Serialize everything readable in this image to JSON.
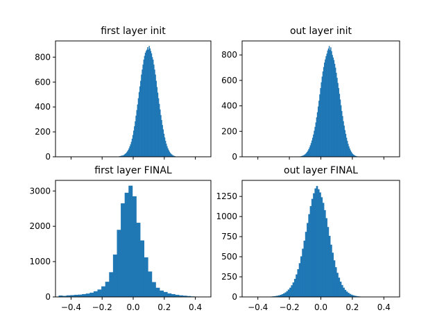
{
  "colors": {
    "bar": "#1f77b4"
  },
  "chart_data": [
    {
      "type": "bar",
      "title": "first layer init",
      "xlim": [
        -0.5,
        0.5
      ],
      "ylim": [
        0,
        930
      ],
      "xticks": [
        -0.4,
        -0.2,
        0.0,
        0.2,
        0.4
      ],
      "show_xtick_labels": false,
      "yticks": [
        0,
        200,
        400,
        600,
        800
      ],
      "ytick_labels": [
        "0",
        "200",
        "400",
        "600",
        "800"
      ],
      "bin_start": -0.1,
      "bin_width": 0.005,
      "values": [
        2,
        3,
        5,
        6,
        8,
        10,
        10,
        13,
        18,
        24,
        28,
        36,
        44,
        55,
        68,
        84,
        100,
        120,
        145,
        175,
        210,
        245,
        285,
        330,
        375,
        420,
        470,
        520,
        565,
        610,
        660,
        700,
        740,
        780,
        810,
        835,
        850,
        860,
        880,
        860,
        890,
        870,
        850,
        830,
        800,
        780,
        740,
        700,
        660,
        610,
        560,
        515,
        470,
        425,
        380,
        335,
        295,
        255,
        220,
        185,
        155,
        128,
        105,
        85,
        68,
        54,
        42,
        32,
        25,
        19,
        14,
        10,
        7,
        5
      ]
    },
    {
      "type": "bar",
      "title": "out layer init",
      "xlim": [
        -0.5,
        0.5
      ],
      "ylim": [
        0,
        910
      ],
      "xticks": [
        -0.4,
        -0.2,
        0.0,
        0.2,
        0.4
      ],
      "show_xtick_labels": false,
      "yticks": [
        0,
        200,
        400,
        600,
        800
      ],
      "ytick_labels": [
        "0",
        "200",
        "400",
        "600",
        "800"
      ],
      "bin_start": -0.14,
      "bin_width": 0.005,
      "values": [
        2,
        3,
        4,
        6,
        8,
        10,
        14,
        18,
        24,
        30,
        38,
        48,
        60,
        74,
        90,
        108,
        128,
        150,
        175,
        205,
        235,
        270,
        310,
        350,
        395,
        440,
        490,
        540,
        585,
        630,
        670,
        705,
        740,
        765,
        790,
        810,
        835,
        850,
        870,
        840,
        860,
        830,
        800,
        780,
        760,
        730,
        700,
        660,
        620,
        580,
        540,
        495,
        450,
        405,
        360,
        320,
        280,
        245,
        210,
        180,
        150,
        125,
        102,
        82,
        65,
        51,
        40,
        30,
        22,
        16,
        12,
        8,
        6,
        4,
        3,
        2,
        2
      ]
    },
    {
      "type": "bar",
      "title": "first layer FINAL",
      "xlim": [
        -0.5,
        0.5
      ],
      "ylim": [
        0,
        3300
      ],
      "xticks": [
        -0.4,
        -0.2,
        0.0,
        0.2,
        0.4
      ],
      "show_xtick_labels": true,
      "xtick_labels": [
        "−0.4",
        "−0.2",
        "0.0",
        "0.2",
        "0.4"
      ],
      "yticks": [
        0,
        1000,
        2000,
        3000
      ],
      "ytick_labels": [
        "0",
        "1000",
        "2000",
        "3000"
      ],
      "bin_start": -0.48,
      "bin_width": 0.025,
      "values": [
        40,
        30,
        45,
        50,
        60,
        65,
        80,
        95,
        120,
        160,
        210,
        300,
        430,
        700,
        1200,
        1900,
        2650,
        2950,
        3150,
        2850,
        2100,
        1600,
        1120,
        720,
        420,
        260,
        180,
        140,
        100,
        80,
        60,
        45,
        35,
        25,
        15,
        10
      ]
    },
    {
      "type": "bar",
      "title": "out layer FINAL",
      "xlim": [
        -0.5,
        0.5
      ],
      "ylim": [
        0,
        1450
      ],
      "xticks": [
        -0.4,
        -0.2,
        0.0,
        0.2,
        0.4
      ],
      "show_xtick_labels": true,
      "xtick_labels": [
        "−0.4",
        "−0.2",
        "0.0",
        "0.2",
        "0.4"
      ],
      "yticks": [
        0,
        250,
        500,
        750,
        1000,
        1250
      ],
      "ytick_labels": [
        "0",
        "250",
        "500",
        "750",
        "1000",
        "1250"
      ],
      "bin_start": -0.34,
      "bin_width": 0.01,
      "values": [
        3,
        4,
        5,
        7,
        9,
        12,
        15,
        20,
        26,
        34,
        44,
        56,
        72,
        92,
        115,
        145,
        180,
        225,
        280,
        345,
        420,
        505,
        600,
        700,
        810,
        920,
        1030,
        1130,
        1220,
        1290,
        1350,
        1380,
        1340,
        1300,
        1240,
        1170,
        1080,
        980,
        870,
        760,
        650,
        550,
        455,
        370,
        300,
        240,
        190,
        148,
        115,
        88,
        67,
        51,
        38,
        28,
        21,
        15,
        11,
        8,
        6,
        4,
        3
      ]
    }
  ]
}
